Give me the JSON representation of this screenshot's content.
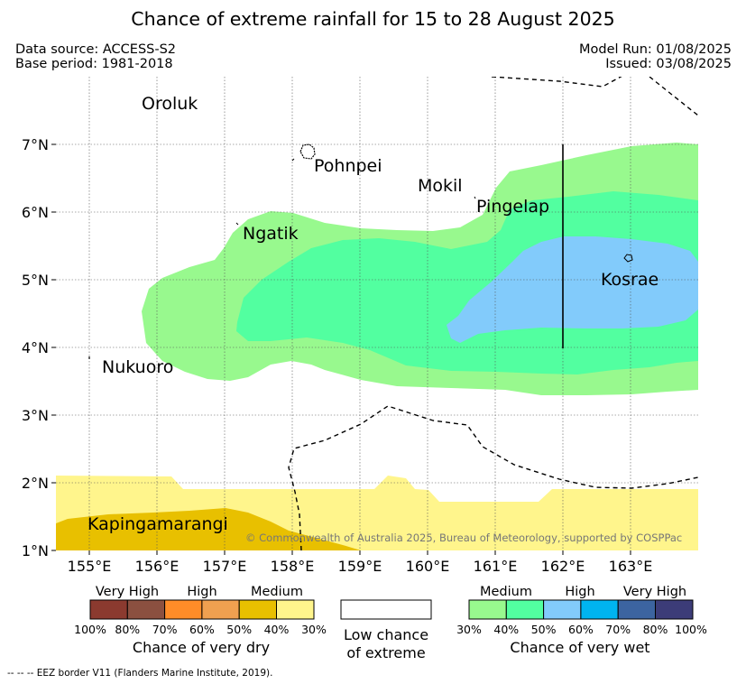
{
  "title": "Chance of extreme rainfall for 15 to 28 August 2025",
  "meta": {
    "data_source": "Data source: ACCESS-S2",
    "base_period": "Base period: 1981-2018",
    "model_run": "Model Run: 01/08/2025",
    "issued": "Issued: 03/08/2025"
  },
  "map": {
    "x_ticks": [
      "155°E",
      "156°E",
      "157°E",
      "158°E",
      "159°E",
      "160°E",
      "161°E",
      "162°E",
      "163°E"
    ],
    "y_ticks": [
      "7°N",
      "6°N",
      "5°N",
      "4°N",
      "3°N",
      "2°N",
      "1°N"
    ],
    "places": [
      "Oroluk",
      "Pohnpei",
      "Mokil",
      "Pingelap",
      "Ngatik",
      "Kosrae",
      "Nukuoro",
      "Kapingamarangi"
    ],
    "copyright": "© Commonwealth of Australia 2025, Bureau of Meteorology, supported by COSPPac",
    "grid": true
  },
  "legend_dry": {
    "categories": [
      "Very High",
      "High",
      "Medium"
    ],
    "percentages": [
      "100%",
      "80%",
      "70%",
      "60%",
      "50%",
      "40%",
      "30%"
    ],
    "colors": [
      "#8b3a2f",
      "#8b5040",
      "#ff8c28",
      "#f0a050",
      "#e8c000",
      "#fff58c"
    ],
    "title": "Chance of very dry"
  },
  "legend_low": {
    "line1": "Low chance",
    "line2": "of extreme"
  },
  "legend_wet": {
    "categories": [
      "Medium",
      "High",
      "Very High"
    ],
    "percentages": [
      "30%",
      "40%",
      "50%",
      "60%",
      "70%",
      "80%",
      "100%"
    ],
    "colors": [
      "#98f98e",
      "#52ffa0",
      "#82cbfb",
      "#00b4f0",
      "#3c64a0",
      "#3c3c78"
    ],
    "title": "Chance of very wet"
  },
  "footnote": "--  --  -- EEZ border V11 (Flanders Marine Institute, 2019)."
}
